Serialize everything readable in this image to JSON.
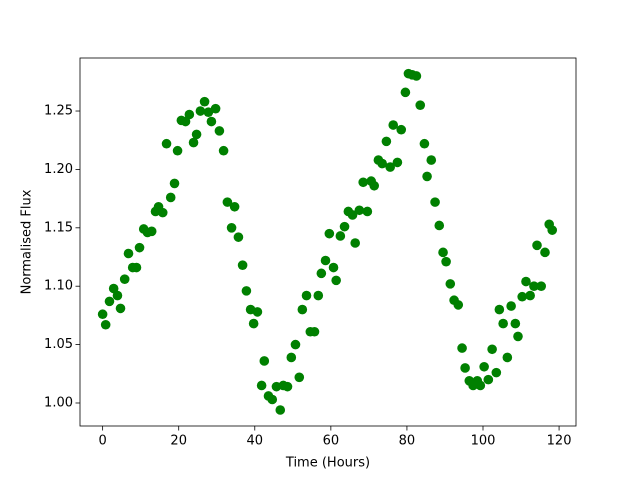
{
  "chart_data": {
    "type": "scatter",
    "xlabel": "Time (Hours)",
    "ylabel": "Normalised Flux",
    "color": "#008000",
    "x": [
      0,
      0.8,
      1.8,
      2.9,
      3.9,
      4.7,
      5.8,
      6.8,
      7.9,
      8.9,
      9.7,
      10.8,
      11.8,
      12.9,
      13.9,
      14.7,
      15.8,
      16.8,
      17.9,
      18.9,
      19.7,
      20.7,
      21.8,
      22.8,
      23.9,
      24.7,
      25.7,
      26.8,
      27.8,
      28.6,
      29.7,
      30.7,
      31.8,
      32.8,
      33.9,
      34.7,
      35.7,
      36.8,
      37.8,
      38.9,
      39.7,
      40.7,
      41.8,
      42.5,
      43.6,
      44.6,
      45.7,
      46.7,
      47.5,
      48.6,
      49.6,
      50.7,
      51.7,
      52.5,
      53.6,
      54.6,
      55.7,
      56.7,
      57.5,
      58.6,
      59.6,
      60.7,
      61.4,
      62.5,
      63.6,
      64.6,
      65.7,
      66.4,
      67.5,
      68.5,
      69.6,
      70.6,
      71.4,
      72.5,
      73.5,
      74.6,
      75.6,
      76.4,
      77.5,
      78.5,
      79.6,
      80.4,
      81.4,
      82.5,
      83.5,
      84.6,
      85.3,
      86.4,
      87.4,
      88.5,
      89.5,
      90.3,
      91.4,
      92.4,
      93.5,
      94.5,
      95.3,
      96.4,
      97.4,
      98.5,
      99.3,
      100.3,
      101.4,
      102.4,
      103.5,
      104.3,
      105.3,
      106.4,
      107.4,
      108.5,
      109.2,
      110.3,
      111.3,
      112.4,
      113.4,
      114.2,
      115.3,
      116.3,
      117.4,
      118.2
    ],
    "values": [
      1.076,
      1.067,
      1.087,
      1.098,
      1.092,
      1.081,
      1.106,
      1.128,
      1.116,
      1.116,
      1.133,
      1.149,
      1.146,
      1.147,
      1.164,
      1.168,
      1.163,
      1.222,
      1.176,
      1.188,
      1.216,
      1.242,
      1.241,
      1.247,
      1.223,
      1.23,
      1.25,
      1.258,
      1.249,
      1.241,
      1.252,
      1.233,
      1.216,
      1.172,
      1.15,
      1.168,
      1.142,
      1.118,
      1.096,
      1.08,
      1.068,
      1.078,
      1.015,
      1.036,
      1.006,
      1.003,
      1.014,
      0.994,
      1.015,
      1.014,
      1.039,
      1.05,
      1.022,
      1.08,
      1.092,
      1.061,
      1.061,
      1.092,
      1.111,
      1.122,
      1.145,
      1.116,
      1.105,
      1.143,
      1.151,
      1.164,
      1.161,
      1.137,
      1.165,
      1.189,
      1.164,
      1.19,
      1.186,
      1.208,
      1.205,
      1.224,
      1.202,
      1.238,
      1.206,
      1.234,
      1.266,
      1.282,
      1.281,
      1.28,
      1.255,
      1.222,
      1.194,
      1.208,
      1.172,
      1.152,
      1.129,
      1.121,
      1.102,
      1.088,
      1.084,
      1.047,
      1.03,
      1.019,
      1.015,
      1.019,
      1.015,
      1.031,
      1.02,
      1.046,
      1.026,
      1.08,
      1.068,
      1.039,
      1.083,
      1.068,
      1.057,
      1.091,
      1.104,
      1.092,
      1.1,
      1.135,
      1.1,
      1.129,
      1.153,
      1.148
    ],
    "xlim": [
      -5.95,
      124.45
    ],
    "ylim": [
      0.9803,
      1.2954
    ],
    "xticks": [
      0,
      20,
      40,
      60,
      80,
      100,
      120
    ],
    "yticks": [
      {
        "value": 1.0,
        "label": "1.00"
      },
      {
        "value": 1.05,
        "label": "1.05"
      },
      {
        "value": 1.1,
        "label": "1.10"
      },
      {
        "value": 1.15,
        "label": "1.15"
      },
      {
        "value": 1.2,
        "label": "1.20"
      },
      {
        "value": 1.25,
        "label": "1.25"
      }
    ]
  }
}
